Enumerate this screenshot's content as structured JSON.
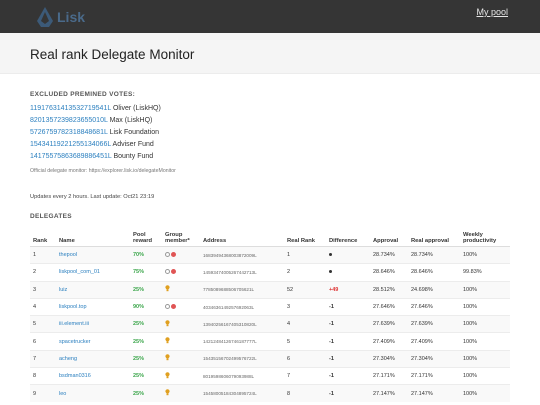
{
  "header": {
    "logo_text": "Lisk",
    "my_pool_link": "My pool"
  },
  "page_title": "Real rank Delegate Monitor",
  "premined": {
    "title": "EXCLUDED PREMINED VOTES:",
    "items": [
      {
        "address": "11917631413532719541L",
        "label": "Oliver (LiskHQ)"
      },
      {
        "address": "8201357239823655010L",
        "label": "Max (LiskHQ)"
      },
      {
        "address": "5726759782318848681L",
        "label": "Lisk Foundation"
      },
      {
        "address": "15434119221255134066L",
        "label": "Adviser Fund"
      },
      {
        "address": "14175575863689886451L",
        "label": "Bounty Fund"
      }
    ],
    "note": "Official delegate monitor: https://explorer.lisk.io/delegateMonitor"
  },
  "updates": "Updates every 2 hours. Last update: Oct21 23:19",
  "delegates": {
    "title": "DELEGATES",
    "headers": {
      "rank": "Rank",
      "name": "Name",
      "pool_reward": "Pool reward",
      "group_member": "Group member*",
      "address": "Address",
      "real_rank": "Real Rank",
      "difference": "Difference",
      "approval": "Approval",
      "real_approval": "Real approval",
      "weekly_productivity": "Weekly productivity"
    },
    "rows": [
      {
        "rank": "1",
        "name": "thepool",
        "reward": "70%",
        "group": "circles",
        "address": "16839494368003872009L",
        "real_rank": "1",
        "difference": "dot",
        "approval": "28.734%",
        "real_approval": "28.734%",
        "productivity": "100%"
      },
      {
        "rank": "2",
        "name": "liskpool_com_01",
        "reward": "75%",
        "group": "circles",
        "address": "14593474005267442713L",
        "real_rank": "2",
        "difference": "dot",
        "approval": "28.646%",
        "real_approval": "28.646%",
        "productivity": "99.83%"
      },
      {
        "rank": "3",
        "name": "luiz",
        "reward": "25%",
        "group": "bulb",
        "address": "7785089688506705621L",
        "real_rank": "52",
        "difference": "+49",
        "approval": "28.512%",
        "real_approval": "24.698%",
        "productivity": "100%"
      },
      {
        "rank": "4",
        "name": "liskpool.top",
        "reward": "90%",
        "group": "circles",
        "address": "4034636149257692063L",
        "real_rank": "3",
        "difference": "-1",
        "approval": "27.646%",
        "real_approval": "27.646%",
        "productivity": "100%"
      },
      {
        "rank": "5",
        "name": "iii.element.iii",
        "reward": "25%",
        "group": "bulb",
        "address": "13940256167405310820L",
        "real_rank": "4",
        "difference": "-1",
        "approval": "27.639%",
        "real_approval": "27.639%",
        "productivity": "100%"
      },
      {
        "rank": "6",
        "name": "spacetrucker",
        "reward": "25%",
        "group": "bulb",
        "address": "14212484126746187777L",
        "real_rank": "5",
        "difference": "-1",
        "approval": "27.409%",
        "real_approval": "27.409%",
        "productivity": "100%"
      },
      {
        "rank": "7",
        "name": "acheng",
        "reward": "25%",
        "group": "bulb",
        "address": "15435156702499576722L",
        "real_rank": "6",
        "difference": "-1",
        "approval": "27.304%",
        "real_approval": "27.304%",
        "productivity": "100%"
      },
      {
        "rank": "8",
        "name": "bsdman0316",
        "reward": "25%",
        "group": "bulb",
        "address": "8019598606079093988L",
        "real_rank": "7",
        "difference": "-1",
        "approval": "27.171%",
        "real_approval": "27.171%",
        "productivity": "100%"
      },
      {
        "rank": "9",
        "name": "leo",
        "reward": "25%",
        "group": "bulb",
        "address": "15458005184304895724L",
        "real_rank": "8",
        "difference": "-1",
        "approval": "27.147%",
        "real_approval": "27.147%",
        "productivity": "100%"
      }
    ]
  },
  "colors": {
    "header_bg": "#353535",
    "link": "#2a7fbf",
    "reward_green": "#3aa54a",
    "diff_red": "#d33333",
    "bulb": "#e0a020"
  },
  "icons": {
    "logo": "lisk-logo-icon",
    "group_circles": "group-circles-icon",
    "group_bulb": "lightbulb-icon",
    "difference_dot": "dot-icon"
  }
}
